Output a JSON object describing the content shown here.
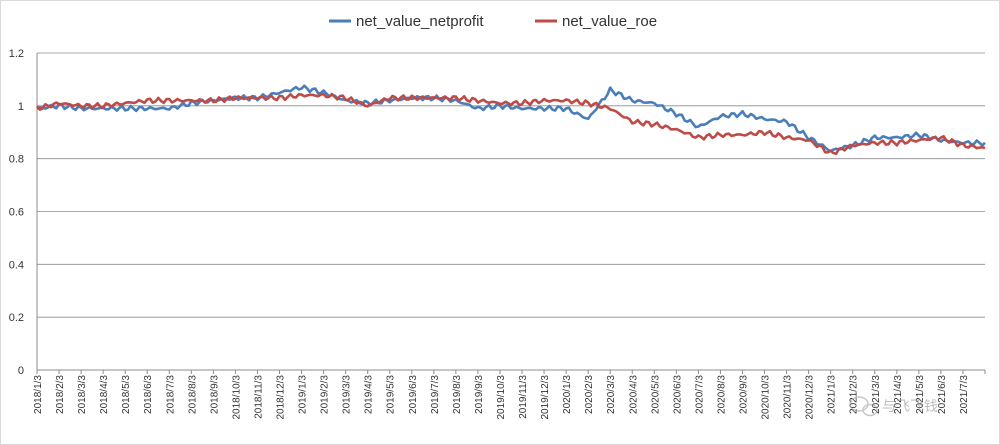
{
  "chart_data": {
    "type": "line",
    "title": "",
    "xlabel": "",
    "ylabel": "",
    "ylim": [
      0,
      1.2
    ],
    "yticks": [
      "0",
      "0.2",
      "0.4",
      "0.6",
      "0.8",
      "1",
      "1.2"
    ],
    "grid": true,
    "legend_position": "top",
    "x_tick_labels": [
      "2018/1/3",
      "2018/2/3",
      "2018/3/3",
      "2018/4/3",
      "2018/5/3",
      "2018/6/3",
      "2018/7/3",
      "2018/8/3",
      "2018/9/3",
      "2018/10/3",
      "2018/11/3",
      "2018/12/3",
      "2019/1/3",
      "2019/2/3",
      "2019/3/3",
      "2019/4/3",
      "2019/5/3",
      "2019/6/3",
      "2019/7/3",
      "2019/8/3",
      "2019/9/3",
      "2019/10/3",
      "2019/11/3",
      "2019/12/3",
      "2020/1/3",
      "2020/2/3",
      "2020/3/3",
      "2020/4/3",
      "2020/5/3",
      "2020/6/3",
      "2020/7/3",
      "2020/8/3",
      "2020/9/3",
      "2020/10/3",
      "2020/11/3",
      "2020/12/3",
      "2021/1/3",
      "2021/2/3",
      "2021/3/3",
      "2021/4/3",
      "2021/5/3",
      "2021/6/3",
      "2021/7/3"
    ],
    "x": [
      "2018/1/3",
      "2018/2/3",
      "2018/3/3",
      "2018/4/3",
      "2018/5/3",
      "2018/6/3",
      "2018/7/3",
      "2018/8/3",
      "2018/9/3",
      "2018/10/3",
      "2018/11/3",
      "2018/12/3",
      "2019/1/3",
      "2019/2/3",
      "2019/3/3",
      "2019/4/3",
      "2019/5/3",
      "2019/6/3",
      "2019/7/3",
      "2019/8/3",
      "2019/9/3",
      "2019/10/3",
      "2019/11/3",
      "2019/12/3",
      "2020/1/3",
      "2020/2/3",
      "2020/3/3",
      "2020/4/3",
      "2020/5/3",
      "2020/6/3",
      "2020/7/3",
      "2020/8/3",
      "2020/9/3",
      "2020/10/3",
      "2020/11/3",
      "2020/12/3",
      "2021/1/3",
      "2021/2/3",
      "2021/3/3",
      "2021/4/3",
      "2021/5/3",
      "2021/6/3",
      "2021/7/3",
      "2021/8/3"
    ],
    "series": [
      {
        "name": "net_value_netprofit",
        "color": "#4a7ebb",
        "values": [
          0.99,
          1.0,
          0.99,
          0.99,
          0.99,
          0.99,
          0.99,
          1.01,
          1.02,
          1.03,
          1.03,
          1.05,
          1.07,
          1.05,
          1.02,
          1.01,
          1.02,
          1.03,
          1.03,
          1.02,
          0.99,
          1.0,
          0.99,
          0.99,
          0.99,
          0.95,
          1.06,
          1.02,
          1.01,
          0.97,
          0.92,
          0.96,
          0.97,
          0.95,
          0.94,
          0.88,
          0.83,
          0.85,
          0.88,
          0.88,
          0.89,
          0.87,
          0.86,
          0.86
        ]
      },
      {
        "name": "net_value_roe",
        "color": "#be4b48",
        "values": [
          0.99,
          1.01,
          1.0,
          1.0,
          1.01,
          1.02,
          1.02,
          1.02,
          1.02,
          1.03,
          1.03,
          1.03,
          1.04,
          1.04,
          1.03,
          1.0,
          1.03,
          1.03,
          1.03,
          1.03,
          1.02,
          1.01,
          1.01,
          1.02,
          1.02,
          1.01,
          0.99,
          0.94,
          0.93,
          0.91,
          0.88,
          0.89,
          0.89,
          0.9,
          0.88,
          0.87,
          0.82,
          0.85,
          0.86,
          0.86,
          0.87,
          0.88,
          0.85,
          0.84
        ]
      }
    ]
  },
  "watermark": {
    "icon": "wechat-icon",
    "text": "与飞飞钱"
  }
}
